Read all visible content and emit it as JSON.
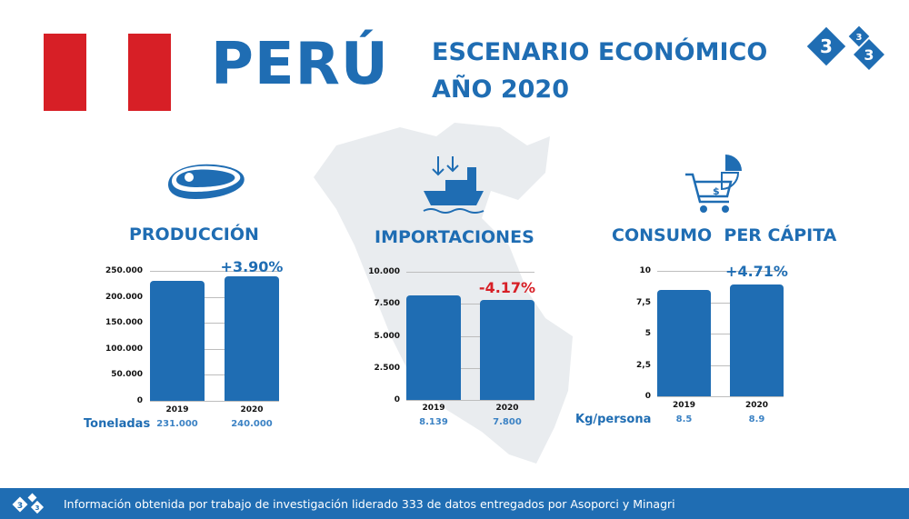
{
  "header": {
    "country": "PERÚ",
    "subtitle_line1": "ESCENARIO ECONÓMICO",
    "subtitle_line2": "AÑO 2020",
    "logo_text": "333"
  },
  "colors": {
    "primary": "#1f6db3",
    "negative": "#d71f26",
    "flag_red": "#d71f26"
  },
  "chart_data": [
    {
      "type": "bar",
      "title": "PRODUCCIÓN",
      "icon": "meat-icon",
      "categories": [
        "2019",
        "2020"
      ],
      "values": [
        231000,
        240000
      ],
      "value_labels": [
        "231.000",
        "240.000"
      ],
      "yticks": [
        0,
        50000,
        100000,
        150000,
        200000,
        250000
      ],
      "ytick_labels": [
        "0",
        "50.000",
        "100.000",
        "150.000",
        "200.000",
        "250.000"
      ],
      "ylim": [
        0,
        250000
      ],
      "unit": "Toneladas",
      "change": "+3.90%",
      "change_positive": true
    },
    {
      "type": "bar",
      "title": "IMPORTACIONES",
      "icon": "cargo-ship-icon",
      "categories": [
        "2019",
        "2020"
      ],
      "values": [
        8139,
        7800
      ],
      "value_labels": [
        "8.139",
        "7.800"
      ],
      "yticks": [
        0,
        2500,
        5000,
        7500,
        10000
      ],
      "ytick_labels": [
        "0",
        "2.500",
        "5.000",
        "7.500",
        "10.000"
      ],
      "ylim": [
        0,
        10000
      ],
      "unit": "",
      "change": "-4.17%",
      "change_positive": false
    },
    {
      "type": "bar",
      "title": "CONSUMO  PER CÁPITA",
      "icon": "shopping-cart-icon",
      "categories": [
        "2019",
        "2020"
      ],
      "values": [
        8.5,
        8.9
      ],
      "value_labels": [
        "8.5",
        "8.9"
      ],
      "yticks": [
        0,
        2.5,
        5,
        7.5,
        10
      ],
      "ytick_labels": [
        "0",
        "2,5",
        "5",
        "7,5",
        "10"
      ],
      "ylim": [
        0,
        10
      ],
      "unit": "Kg/persona",
      "change": "+4.71%",
      "change_positive": true
    }
  ],
  "footer": {
    "text": "Información obtenida por trabajo de investigación liderado 333 de datos entregados por Asoporci y Minagri"
  }
}
